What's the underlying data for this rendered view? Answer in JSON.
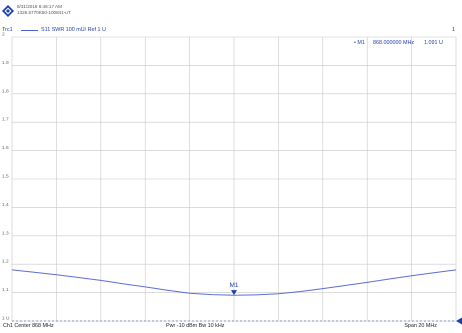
{
  "header": {
    "timestamp": "8/31/2018 6:46:17 AM",
    "instrument": "1326.5770K50-100841-uT",
    "trace_name": "Trc1",
    "trace_desc": "S11  SWR  100 mU/ Ref 1 U",
    "channel_number": "1",
    "logo_icon": "rohde-schwarz-logo-icon"
  },
  "marker": {
    "label": "M1",
    "readout_label": "• M1",
    "readout_freq": "868.000000  MHz",
    "readout_value": "1.091 U"
  },
  "footer": {
    "left": "Ch1  Center 868 MHz",
    "middle": "Pwr  -10 dBm  Bw  10 kHz",
    "right": "Span  20 MHz"
  },
  "colors": {
    "trace": "#5b6fd6",
    "marker": "#1f3fa8",
    "grid": "#c8c8c8",
    "background": "#ffffff"
  },
  "chart_data": {
    "type": "line",
    "title": "",
    "xlabel": "",
    "ylabel": "",
    "x_center_mhz": 868,
    "x_span_mhz": 20,
    "xlim": [
      858,
      878
    ],
    "ylim": [
      1.0,
      2.0
    ],
    "ytick_labels": [
      "2",
      "1.9",
      "1.8",
      "1.7",
      "1.6",
      "1.5",
      "1.4",
      "1.3",
      "1.2",
      "1.1",
      "1 U"
    ],
    "grid": true,
    "series": [
      {
        "name": "",
        "x": [
          858,
          859,
          860,
          861,
          862,
          863,
          864,
          865,
          866,
          867,
          868,
          869,
          870,
          871,
          872,
          873,
          874,
          875,
          876,
          877,
          878
        ],
        "y": [
          1.18,
          1.172,
          1.163,
          1.153,
          1.143,
          1.131,
          1.12,
          1.108,
          1.098,
          1.093,
          1.091,
          1.092,
          1.096,
          1.104,
          1.114,
          1.125,
          1.136,
          1.148,
          1.159,
          1.17,
          1.18
        ]
      }
    ],
    "markers": [
      {
        "label": "M1",
        "x": 868,
        "y": 1.091
      }
    ],
    "reference_level": 1.0
  }
}
